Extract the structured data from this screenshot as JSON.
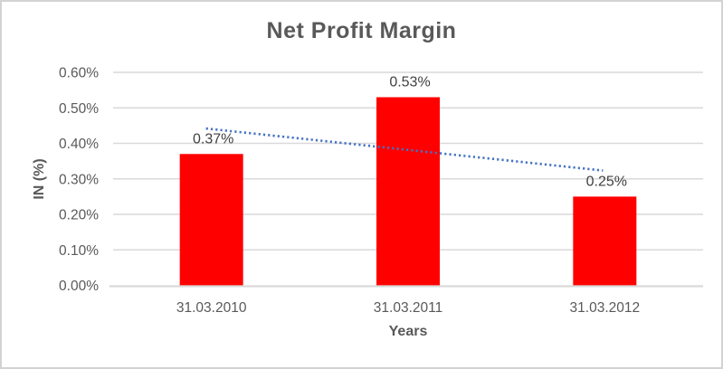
{
  "chart_data": {
    "type": "bar",
    "title": "Net Profit Margin",
    "xlabel": "Years",
    "ylabel": "IN (%)",
    "categories": [
      "31.03.2010",
      "31.03.2011",
      "31.03.2012"
    ],
    "values": [
      0.37,
      0.53,
      0.25
    ],
    "data_labels": [
      "0.37%",
      "0.53%",
      "0.25%"
    ],
    "y_tick_labels": [
      "0.00%",
      "0.10%",
      "0.20%",
      "0.30%",
      "0.40%",
      "0.50%",
      "0.60%"
    ],
    "ylim": [
      0,
      0.6
    ],
    "y_tick_step": 0.1,
    "grid": true,
    "legend": "none",
    "trendline": {
      "type": "linear",
      "style": "dotted",
      "fitted_values": [
        0.4433,
        0.3833,
        0.3233
      ]
    },
    "colors": {
      "bar": "#FF0000",
      "trendline": "#4472C4",
      "gridline": "#D9D9D9",
      "axis_line": "#D9D9D9",
      "title_text": "#595959",
      "tick_text": "#595959",
      "data_label_text": "#404040",
      "border": "#D3D3D3",
      "background": "#FFFFFF"
    }
  }
}
